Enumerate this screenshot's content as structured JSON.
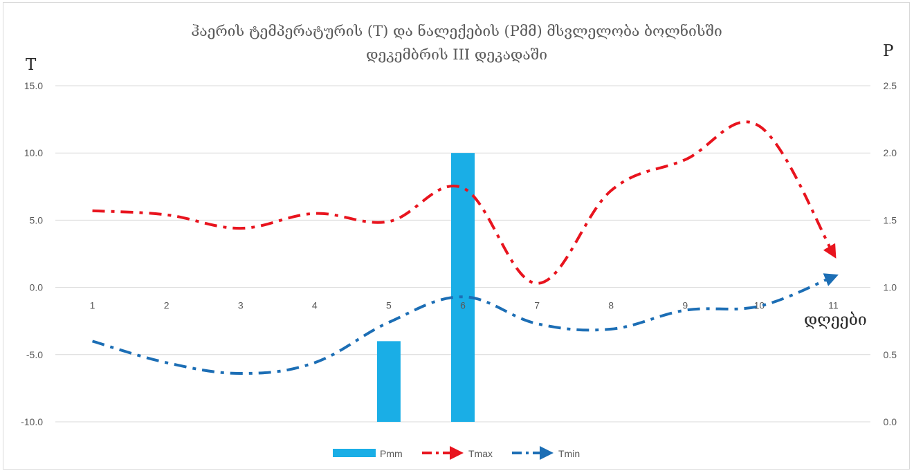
{
  "chart_data": {
    "type": "bar",
    "title_line1": "ჰაერის ტემპერატურის (T) და ნალექების (Pმმ)  მსვლელობა ბოლნისში",
    "title_line2": "დეკემბრის III  დეკადაში",
    "y_left_label": "T",
    "y_right_label": "P",
    "x_label": "დღეები",
    "categories": [
      "1",
      "2",
      "3",
      "4",
      "5",
      "6",
      "7",
      "8",
      "9",
      "10",
      "11"
    ],
    "y_left_ticks": [
      "15.0",
      "10.0",
      "5.0",
      "0.0",
      "-5.0",
      "-10.0"
    ],
    "y_right_ticks": [
      "2.5",
      "2.0",
      "1.5",
      "1.0",
      "0.5",
      "0.0"
    ],
    "ylim_left": [
      -10,
      15
    ],
    "ylim_right": [
      0,
      2.5
    ],
    "grid": true,
    "legend_position": "bottom",
    "series": [
      {
        "name": "Pmm",
        "kind": "bar",
        "axis": "right",
        "color": "#1aaee6",
        "values": [
          0,
          0,
          0,
          0,
          0.6,
          2.0,
          0,
          0,
          0,
          0,
          0
        ]
      },
      {
        "name": "Tmax",
        "kind": "line",
        "axis": "left",
        "color": "#e8141e",
        "values": [
          5.7,
          5.4,
          4.4,
          5.5,
          4.9,
          7.4,
          0.3,
          7.2,
          9.5,
          12.0,
          2.5
        ]
      },
      {
        "name": "Tmin",
        "kind": "line",
        "axis": "left",
        "color": "#1c6eb5",
        "values": [
          -4.0,
          -5.6,
          -6.4,
          -5.6,
          -2.6,
          -0.7,
          -2.7,
          -3.1,
          -1.7,
          -1.4,
          0.8
        ]
      }
    ]
  }
}
